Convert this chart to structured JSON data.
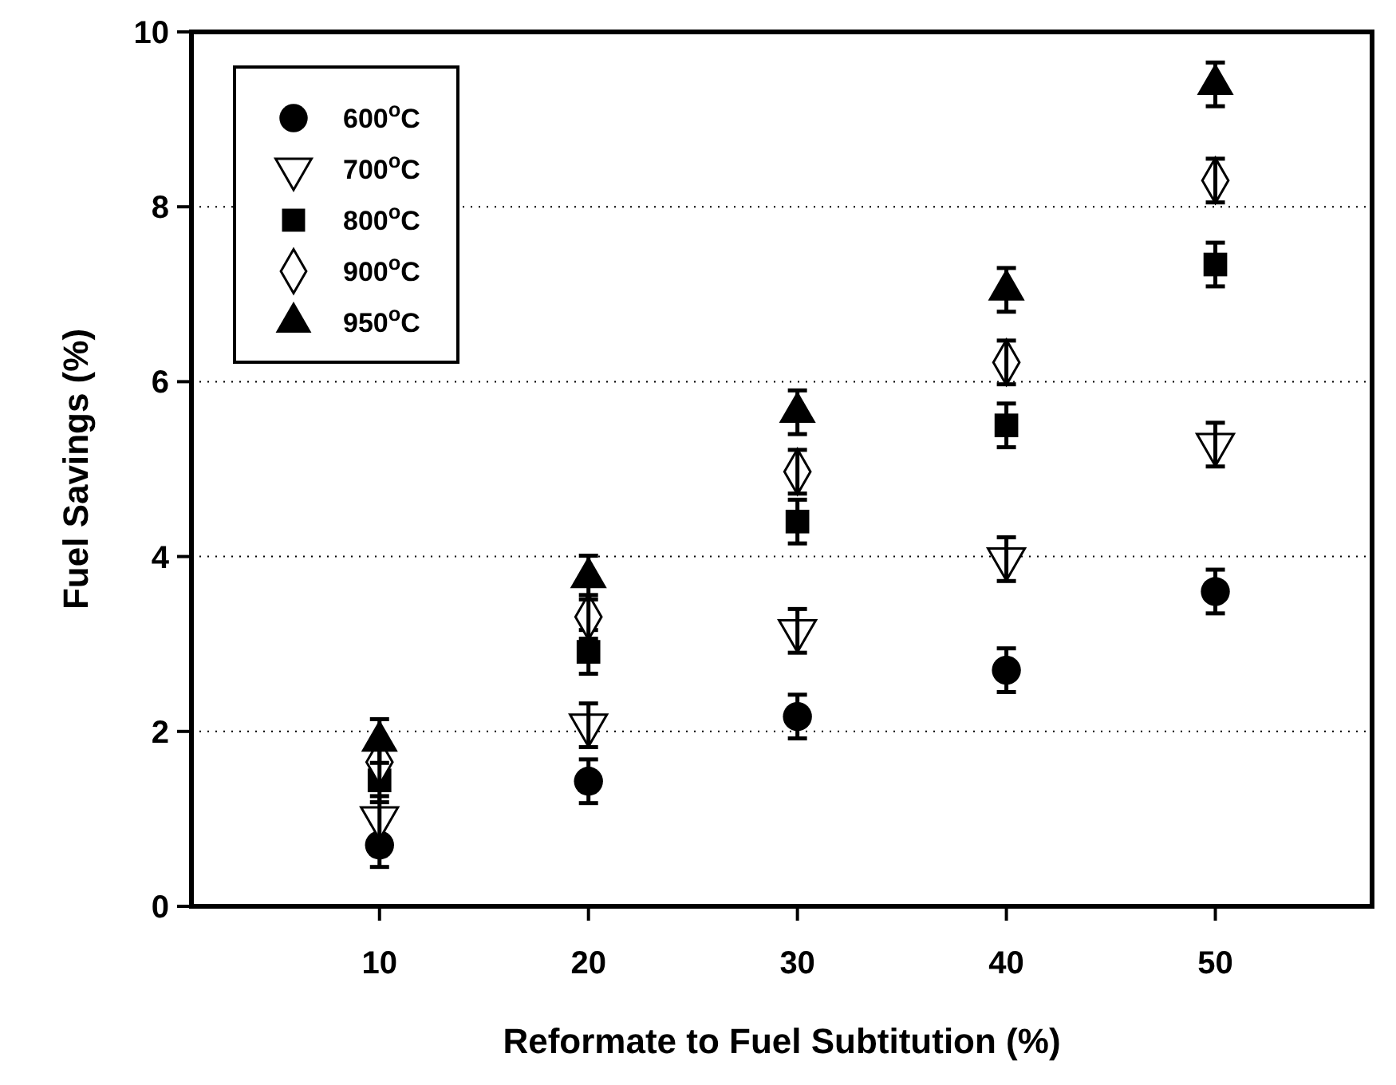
{
  "chart_data": {
    "type": "scatter",
    "xlabel": "Reformate to Fuel Subtitution (%)",
    "ylabel": "Fuel Savings (%)",
    "xlim": [
      1,
      57.5
    ],
    "xticks": [
      10,
      20,
      30,
      40,
      50
    ],
    "ylim": [
      0,
      10
    ],
    "yticks": [
      0,
      2,
      4,
      6,
      8,
      10
    ],
    "grid": "y",
    "legend": "top left",
    "x": [
      10,
      20,
      30,
      40,
      50
    ],
    "series": [
      {
        "name": "600$^{o}$C",
        "color": "#000000",
        "marker": "circle",
        "values": [
          0.7,
          1.43,
          2.17,
          2.7,
          3.6
        ],
        "errors": [
          0.25,
          0.25,
          0.25,
          0.25,
          0.25
        ]
      },
      {
        "name": "700$^{o}$C",
        "color": "#000000",
        "marker": "triangle-down-open",
        "values": [
          1.01,
          2.07,
          3.15,
          3.97,
          5.28
        ],
        "errors": [
          0.25,
          0.25,
          0.25,
          0.25,
          0.25
        ]
      },
      {
        "name": "800$^{o}$C",
        "color": "#000000",
        "marker": "square",
        "values": [
          1.44,
          2.91,
          4.4,
          5.5,
          7.34
        ],
        "errors": [
          0.25,
          0.25,
          0.25,
          0.25,
          0.25
        ]
      },
      {
        "name": "900$^{o}$C",
        "color": "#000000",
        "marker": "diamond-open",
        "values": [
          1.65,
          3.31,
          4.97,
          6.22,
          8.3
        ],
        "errors": [
          0.25,
          0.25,
          0.25,
          0.25,
          0.25
        ]
      },
      {
        "name": "950$^{o}$C",
        "color": "#000000",
        "marker": "triangle",
        "values": [
          1.89,
          3.76,
          5.65,
          7.05,
          9.4
        ],
        "errors": [
          0.25,
          0.25,
          0.25,
          0.25,
          0.25
        ]
      }
    ]
  }
}
